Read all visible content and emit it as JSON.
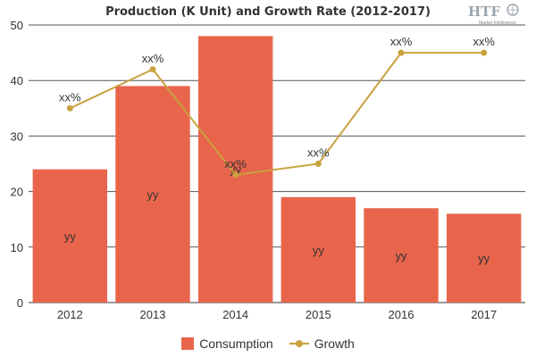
{
  "title": "Production (K Unit) and Growth Rate (2012-2017)",
  "logo": {
    "text": "HTF",
    "subtext": "Market Intelligence"
  },
  "colors": {
    "bar": "#e8654c",
    "line": "#c9a23e",
    "grid": "#555555",
    "text": "#333333"
  },
  "legend": {
    "consumption_label": "Consumption",
    "growth_label": "Growth",
    "position": "bottom"
  },
  "chart_data": {
    "type": "bar",
    "title": "Production (K Unit) and Growth Rate (2012-2017)",
    "xlabel": "",
    "ylabel": "",
    "ylim": [
      0,
      50
    ],
    "yticks": [
      0,
      10,
      20,
      30,
      40,
      50
    ],
    "grid": true,
    "categories": [
      "2012",
      "2013",
      "2014",
      "2015",
      "2016",
      "2017"
    ],
    "series": [
      {
        "name": "Consumption",
        "type": "bar",
        "values": [
          24,
          39,
          48,
          19,
          17,
          16
        ],
        "labels": [
          "yy",
          "yy",
          "yy",
          "yy",
          "yy",
          "yy"
        ]
      },
      {
        "name": "Growth",
        "type": "line",
        "values": [
          35,
          42,
          23,
          25,
          45,
          45
        ],
        "labels": [
          "xx%",
          "xx%",
          "xx%",
          "xx%",
          "xx%",
          "xx%"
        ]
      }
    ]
  }
}
